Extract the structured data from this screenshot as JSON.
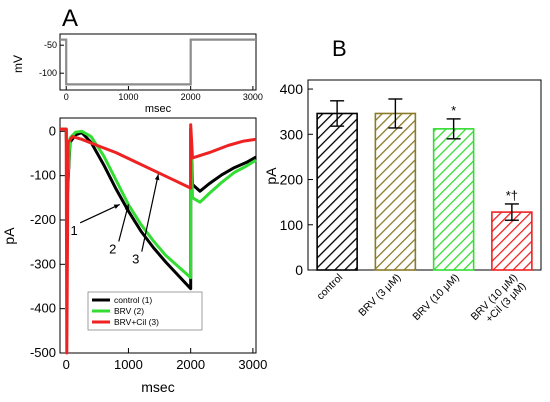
{
  "panels": {
    "a_label": "A",
    "b_label": "B"
  },
  "chart_data": [
    {
      "type": "line",
      "panel": "A-top",
      "ylabel": "mV",
      "xlabel": "msec",
      "xlim": [
        -100,
        3050
      ],
      "ylim": [
        -130,
        -30
      ],
      "xticks": [
        0,
        1000,
        2000,
        3000
      ],
      "yticks": [
        -50,
        -100
      ],
      "series": [
        {
          "color": "#8c8c8c",
          "points": [
            [
              -100,
              -40
            ],
            [
              0,
              -40
            ],
            [
              0,
              -120
            ],
            [
              2000,
              -120
            ],
            [
              2000,
              -40
            ],
            [
              3050,
              -40
            ]
          ]
        }
      ]
    },
    {
      "type": "line",
      "panel": "A-main",
      "ylabel": "pA",
      "xlabel": "msec",
      "xlim": [
        -100,
        3050
      ],
      "ylim": [
        -500,
        30
      ],
      "xticks": [
        0,
        1000,
        2000,
        3000
      ],
      "yticks": [
        0,
        -100,
        -200,
        -300,
        -400,
        -500
      ],
      "legend_position": "bottom-center",
      "series": [
        {
          "name": "control (1)",
          "color": "#000000",
          "points": [
            [
              -100,
              5
            ],
            [
              0,
              5
            ],
            [
              20,
              -140
            ],
            [
              60,
              -25
            ],
            [
              150,
              -8
            ],
            [
              250,
              -3
            ],
            [
              400,
              -25
            ],
            [
              600,
              -75
            ],
            [
              800,
              -130
            ],
            [
              1000,
              -180
            ],
            [
              1200,
              -225
            ],
            [
              1400,
              -262
            ],
            [
              1600,
              -295
            ],
            [
              1800,
              -325
            ],
            [
              2000,
              -355
            ],
            [
              2000,
              5
            ],
            [
              2030,
              -120
            ],
            [
              2150,
              -135
            ],
            [
              2300,
              -118
            ],
            [
              2500,
              -98
            ],
            [
              2700,
              -82
            ],
            [
              2900,
              -70
            ],
            [
              3050,
              -58
            ]
          ]
        },
        {
          "name": "BRV (2)",
          "color": "#33dd33",
          "points": [
            [
              -100,
              5
            ],
            [
              0,
              5
            ],
            [
              20,
              -130
            ],
            [
              60,
              -15
            ],
            [
              150,
              -2
            ],
            [
              250,
              0
            ],
            [
              400,
              -12
            ],
            [
              600,
              -55
            ],
            [
              800,
              -110
            ],
            [
              1000,
              -165
            ],
            [
              1200,
              -210
            ],
            [
              1400,
              -247
            ],
            [
              1600,
              -280
            ],
            [
              1800,
              -305
            ],
            [
              2000,
              -330
            ],
            [
              2000,
              5
            ],
            [
              2030,
              -150
            ],
            [
              2150,
              -160
            ],
            [
              2300,
              -140
            ],
            [
              2500,
              -115
            ],
            [
              2700,
              -93
            ],
            [
              2900,
              -78
            ],
            [
              3050,
              -65
            ]
          ]
        },
        {
          "name": "BRV+Cil (3)",
          "color": "#ee2222",
          "points": [
            [
              -100,
              5
            ],
            [
              0,
              5
            ],
            [
              10,
              -500
            ],
            [
              30,
              -25
            ],
            [
              100,
              -12
            ],
            [
              250,
              -18
            ],
            [
              500,
              -32
            ],
            [
              800,
              -48
            ],
            [
              1100,
              -68
            ],
            [
              1400,
              -88
            ],
            [
              1700,
              -108
            ],
            [
              2000,
              -128
            ],
            [
              2000,
              15
            ],
            [
              2030,
              -60
            ],
            [
              2300,
              -48
            ],
            [
              2600,
              -32
            ],
            [
              2850,
              -22
            ],
            [
              3050,
              -18
            ]
          ]
        }
      ],
      "annotations": [
        {
          "text": "1",
          "x": 160,
          "y": -220,
          "arrow_to": [
            860,
            -165
          ]
        },
        {
          "text": "2",
          "x": 780,
          "y": -262,
          "arrow_to": [
            1000,
            -165
          ]
        },
        {
          "text": "3",
          "x": 1150,
          "y": -285,
          "arrow_to": [
            1480,
            -97
          ]
        }
      ]
    },
    {
      "type": "bar",
      "panel": "B",
      "ylabel": "pA",
      "categories": [
        "control",
        "BRV (3 μM)",
        "BRV (10 μM)",
        "BRV (10 μM)\n+Cil (3 μM)"
      ],
      "values": [
        346,
        346,
        312,
        128
      ],
      "errors": [
        28,
        32,
        22,
        18
      ],
      "colors": [
        "#000000",
        "#8a7a28",
        "#33dd33",
        "#ee2222"
      ],
      "marks": [
        "",
        "",
        "*",
        "*†"
      ],
      "ylim": [
        0,
        420
      ],
      "yticks": [
        0,
        100,
        200,
        300,
        400
      ]
    }
  ]
}
